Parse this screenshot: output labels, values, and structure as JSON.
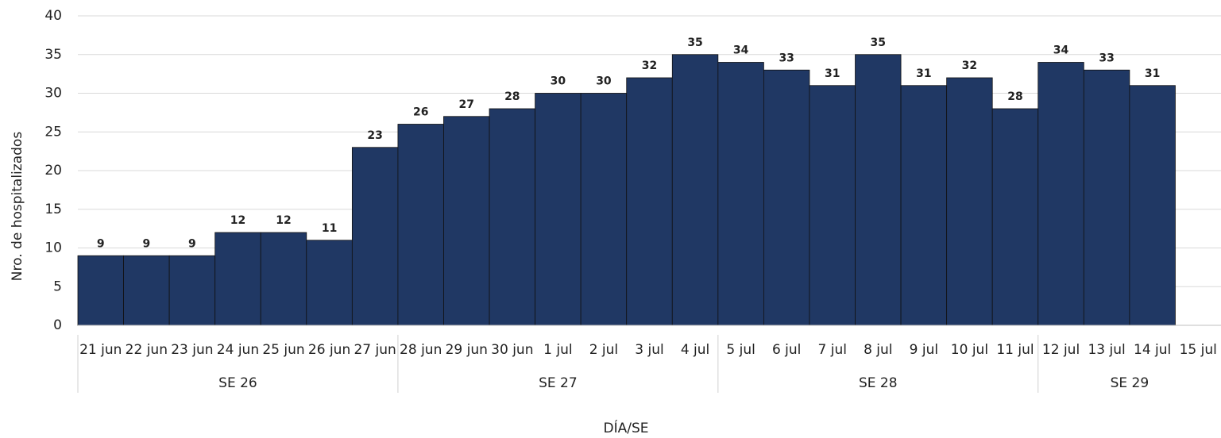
{
  "chart_data": {
    "type": "bar",
    "x_label": "DÍA/SE",
    "y_label": "Nro. de  hospitalizados",
    "categories": [
      "21 jun",
      "22 jun",
      "23 jun",
      "24 jun",
      "25 jun",
      "26 jun",
      "27 jun",
      "28 jun",
      "29 jun",
      "30 jun",
      "1 jul",
      "2 jul",
      "3 jul",
      "4 jul",
      "5 jul",
      "6 jul",
      "7 jul",
      "8 jul",
      "9 jul",
      "10 jul",
      "11 jul",
      "12 jul",
      "13 jul",
      "14 jul",
      "15 jul"
    ],
    "values": [
      9,
      9,
      9,
      12,
      12,
      11,
      23,
      26,
      27,
      28,
      30,
      30,
      32,
      35,
      34,
      33,
      31,
      35,
      31,
      32,
      28,
      34,
      33,
      31,
      null
    ],
    "groups": [
      {
        "label": "SE 26",
        "span": 7
      },
      {
        "label": "SE 27",
        "span": 7
      },
      {
        "label": "SE 28",
        "span": 7
      },
      {
        "label": "SE 29",
        "span": 4
      }
    ],
    "color": "#203864",
    "ylim": [
      0,
      40
    ],
    "yticks": [
      0,
      5,
      10,
      15,
      20,
      25,
      30,
      35,
      40
    ],
    "grid": true
  }
}
